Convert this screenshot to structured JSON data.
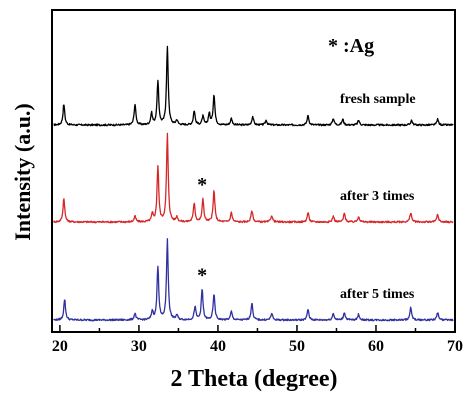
{
  "chart_data": {
    "type": "line",
    "xlabel": "2 Theta (degree)",
    "ylabel": "Intensity (a.u.)",
    "xlim": [
      19,
      70
    ],
    "x_ticks": [
      "20",
      "30",
      "40",
      "50",
      "60",
      "70"
    ],
    "y_ticks_shown": false,
    "legend": {
      "text": "* :Ag",
      "placement": "top-right"
    },
    "grid": false,
    "series": [
      {
        "label": "fresh sample",
        "color": "#000000",
        "baseline": 0.0,
        "peaks": [
          [
            20.5,
            0.22
          ],
          [
            29.5,
            0.22
          ],
          [
            31.6,
            0.12
          ],
          [
            32.4,
            0.45
          ],
          [
            33.6,
            0.82
          ],
          [
            34.8,
            0.05
          ],
          [
            37.0,
            0.15
          ],
          [
            38.1,
            0.09
          ],
          [
            38.9,
            0.12
          ],
          [
            39.5,
            0.32
          ],
          [
            41.7,
            0.07
          ],
          [
            44.4,
            0.09
          ],
          [
            46.1,
            0.05
          ],
          [
            51.4,
            0.1
          ],
          [
            54.6,
            0.07
          ],
          [
            55.8,
            0.06
          ],
          [
            57.8,
            0.05
          ],
          [
            64.5,
            0.05
          ],
          [
            67.8,
            0.06
          ]
        ]
      },
      {
        "label": "after 3 times",
        "color": "#d62728",
        "baseline": 0.0,
        "peaks": [
          [
            20.5,
            0.25
          ],
          [
            29.5,
            0.06
          ],
          [
            31.7,
            0.08
          ],
          [
            32.4,
            0.58
          ],
          [
            33.6,
            0.92
          ],
          [
            34.8,
            0.05
          ],
          [
            37.0,
            0.2
          ],
          [
            38.1,
            0.24
          ],
          [
            39.5,
            0.33
          ],
          [
            41.7,
            0.1
          ],
          [
            44.3,
            0.12
          ],
          [
            46.8,
            0.07
          ],
          [
            51.4,
            0.1
          ],
          [
            54.6,
            0.06
          ],
          [
            56.0,
            0.09
          ],
          [
            57.8,
            0.06
          ],
          [
            64.4,
            0.1
          ],
          [
            67.8,
            0.08
          ]
        ]
      },
      {
        "label": "after 5 times",
        "color": "#3030a0",
        "baseline": 0.0,
        "peaks": [
          [
            20.6,
            0.22
          ],
          [
            29.5,
            0.07
          ],
          [
            31.7,
            0.09
          ],
          [
            32.4,
            0.56
          ],
          [
            33.6,
            0.84
          ],
          [
            34.8,
            0.05
          ],
          [
            37.1,
            0.14
          ],
          [
            38.0,
            0.32
          ],
          [
            39.5,
            0.27
          ],
          [
            41.7,
            0.09
          ],
          [
            44.3,
            0.18
          ],
          [
            46.8,
            0.07
          ],
          [
            51.4,
            0.11
          ],
          [
            54.6,
            0.07
          ],
          [
            56.0,
            0.08
          ],
          [
            57.8,
            0.06
          ],
          [
            64.4,
            0.13
          ],
          [
            67.8,
            0.08
          ]
        ]
      }
    ],
    "ag_markers": [
      {
        "text": "*",
        "x": 38.0,
        "series_index": 1
      },
      {
        "text": "*",
        "x": 38.0,
        "series_index": 2
      }
    ]
  }
}
